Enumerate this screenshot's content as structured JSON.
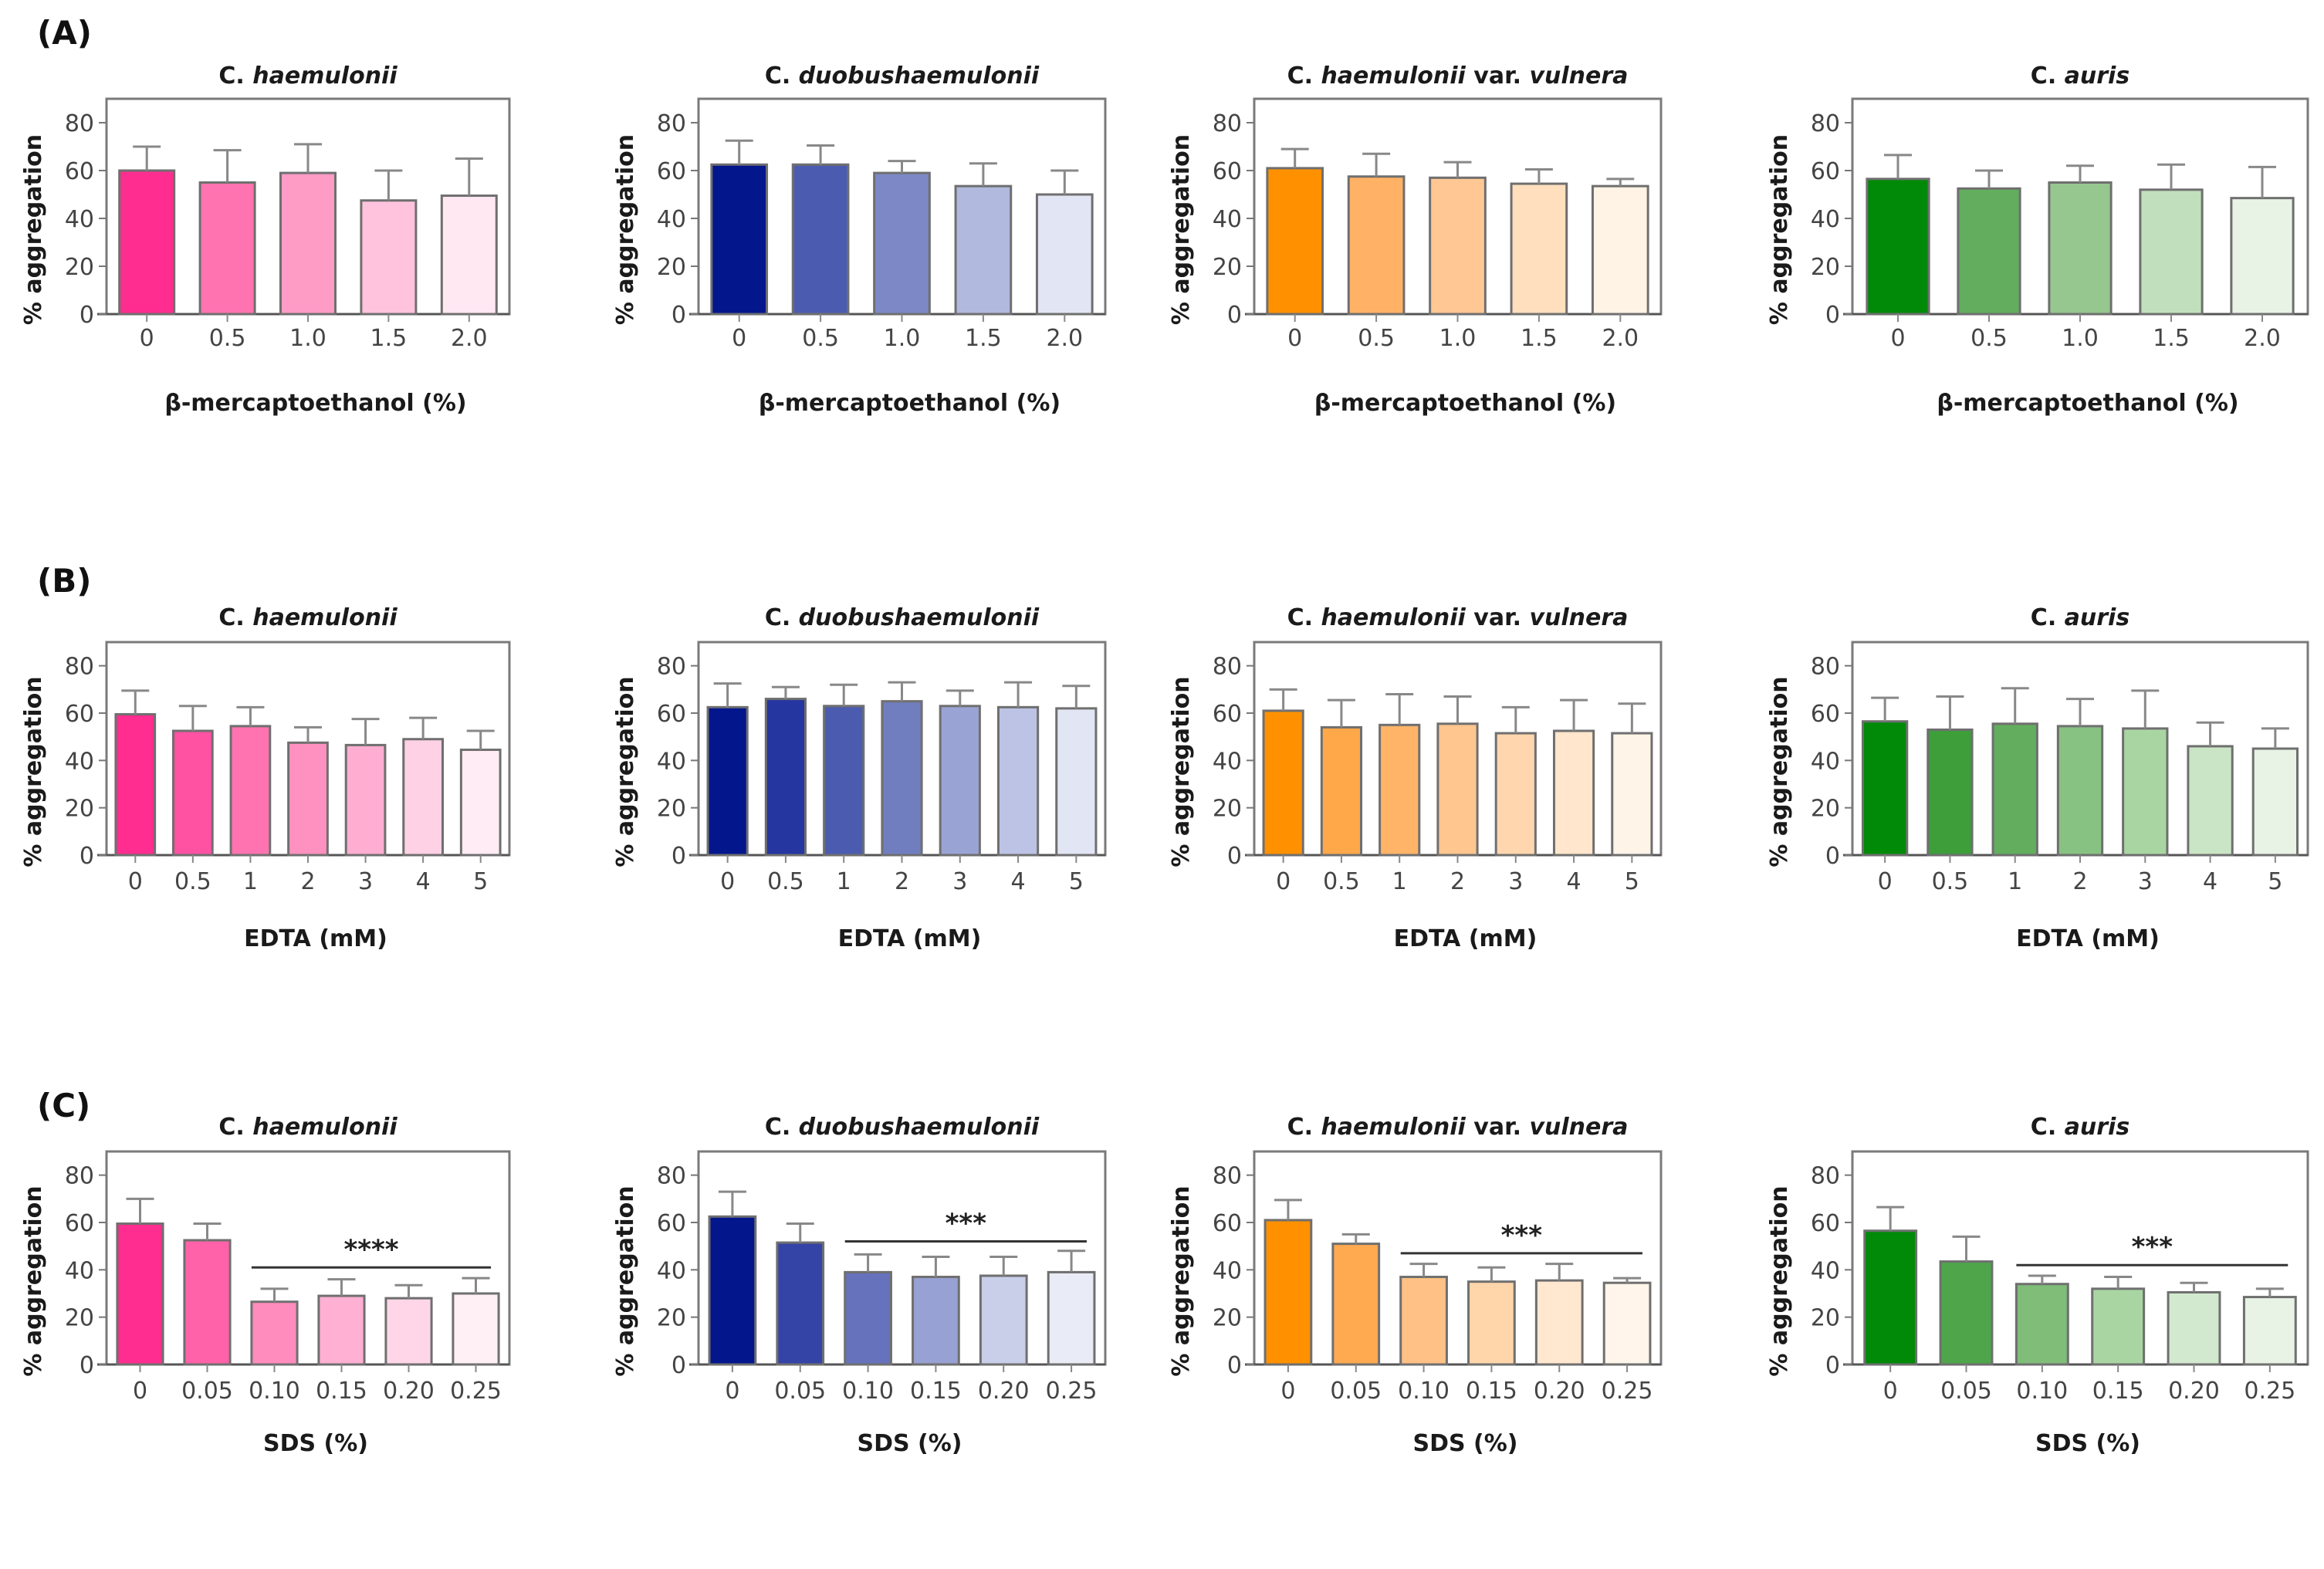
{
  "row_labels": [
    "(A)",
    "(B)",
    "(C)"
  ],
  "chart_data": [
    {
      "type": "bar",
      "row": "A",
      "title_prefix": "C. ",
      "title_italic": "haemulonii",
      "title_suffix": "",
      "xlabel": "β-mercaptoethanol (%)",
      "ylabel": "% aggregation",
      "ylim": [
        0,
        90
      ],
      "yticks": [
        0,
        20,
        40,
        60,
        80
      ],
      "categories": [
        "0",
        "0.5",
        "1.0",
        "1.5",
        "2.0"
      ],
      "values": [
        60,
        55,
        59,
        47.5,
        49.5
      ],
      "errors": [
        10,
        13.5,
        12,
        12.5,
        15.5
      ],
      "colors": [
        "#ff2d8f",
        "#ff74b0",
        "#ff9cc6",
        "#ffc3de",
        "#ffe8f2"
      ],
      "significance": null
    },
    {
      "type": "bar",
      "row": "A",
      "title_prefix": "C. ",
      "title_italic": "duobushaemulonii",
      "title_suffix": "",
      "xlabel": "β-mercaptoethanol (%)",
      "ylabel": "% aggregation",
      "ylim": [
        0,
        90
      ],
      "yticks": [
        0,
        20,
        40,
        60,
        80
      ],
      "categories": [
        "0",
        "0.5",
        "1.0",
        "1.5",
        "2.0"
      ],
      "values": [
        62.5,
        62.5,
        59,
        53.5,
        50
      ],
      "errors": [
        10,
        8,
        5,
        9.5,
        10
      ],
      "colors": [
        "#03168c",
        "#4b5cb0",
        "#7d89c6",
        "#b1b9de",
        "#e2e5f3"
      ],
      "significance": null
    },
    {
      "type": "bar",
      "row": "A",
      "title_prefix": "C. ",
      "title_italic": "haemulonii",
      "title_suffix": " var. vulnera",
      "xlabel": "β-mercaptoethanol (%)",
      "ylabel": "% aggregation",
      "ylim": [
        0,
        90
      ],
      "yticks": [
        0,
        20,
        40,
        60,
        80
      ],
      "categories": [
        "0",
        "0.5",
        "1.0",
        "1.5",
        "2.0"
      ],
      "values": [
        61,
        57.5,
        57,
        54.5,
        53.5
      ],
      "errors": [
        8,
        9.5,
        6.5,
        6,
        3
      ],
      "colors": [
        "#ff9100",
        "#ffb266",
        "#ffc794",
        "#ffdfbd",
        "#fff3e6"
      ],
      "significance": null
    },
    {
      "type": "bar",
      "row": "A",
      "title_prefix": "C. ",
      "title_italic": "auris",
      "title_suffix": "",
      "xlabel": "β-mercaptoethanol (%)",
      "ylabel": "% aggregation",
      "ylim": [
        0,
        90
      ],
      "yticks": [
        0,
        20,
        40,
        60,
        80
      ],
      "categories": [
        "0",
        "0.5",
        "1.0",
        "1.5",
        "2.0"
      ],
      "values": [
        56.5,
        52.5,
        55,
        52,
        48.5
      ],
      "errors": [
        10,
        7.5,
        7,
        10.5,
        13
      ],
      "colors": [
        "#008a08",
        "#62ae5e",
        "#95c78f",
        "#c1dfbd",
        "#e8f3e6"
      ],
      "significance": null
    },
    {
      "type": "bar",
      "row": "B",
      "title_prefix": "C. ",
      "title_italic": "haemulonii",
      "title_suffix": "",
      "xlabel": "EDTA (mM)",
      "ylabel": "% aggregation",
      "ylim": [
        0,
        90
      ],
      "yticks": [
        0,
        20,
        40,
        60,
        80
      ],
      "categories": [
        "0",
        "0.5",
        "1",
        "2",
        "3",
        "4",
        "5"
      ],
      "values": [
        59.5,
        52.5,
        54.5,
        47.5,
        46.5,
        49,
        44.5
      ],
      "errors": [
        10,
        10.5,
        8,
        6.5,
        11,
        9,
        8
      ],
      "colors": [
        "#ff2d8f",
        "#ff52a3",
        "#ff74b0",
        "#ff91c0",
        "#ffaed2",
        "#ffd1e5",
        "#ffecf4"
      ],
      "significance": null
    },
    {
      "type": "bar",
      "row": "B",
      "title_prefix": "C. ",
      "title_italic": "duobushaemulonii",
      "title_suffix": "",
      "xlabel": "EDTA (mM)",
      "ylabel": "% aggregation",
      "ylim": [
        0,
        90
      ],
      "yticks": [
        0,
        20,
        40,
        60,
        80
      ],
      "categories": [
        "0",
        "0.5",
        "1",
        "2",
        "3",
        "4",
        "5"
      ],
      "values": [
        62.5,
        66,
        63,
        65,
        63,
        62.5,
        62
      ],
      "errors": [
        10,
        5,
        9,
        8,
        6.5,
        10.5,
        9.5
      ],
      "colors": [
        "#03168c",
        "#2636a0",
        "#4b5cb0",
        "#707ec0",
        "#9aa4d4",
        "#bcc3e4",
        "#e2e5f3"
      ],
      "significance": null
    },
    {
      "type": "bar",
      "row": "B",
      "title_prefix": "C. ",
      "title_italic": "haemulonii",
      "title_suffix": " var. vulnera",
      "xlabel": "EDTA (mM)",
      "ylabel": "% aggregation",
      "ylim": [
        0,
        90
      ],
      "yticks": [
        0,
        20,
        40,
        60,
        80
      ],
      "categories": [
        "0",
        "0.5",
        "1",
        "2",
        "3",
        "4",
        "5"
      ],
      "values": [
        61,
        54,
        55,
        55.5,
        51.5,
        52.5,
        51.5
      ],
      "errors": [
        9,
        11.5,
        13,
        11.5,
        11,
        13,
        12.5
      ],
      "colors": [
        "#ff9100",
        "#ffa84a",
        "#ffb468",
        "#ffc68f",
        "#ffd6ae",
        "#ffe6cc",
        "#fff4e8"
      ],
      "significance": null
    },
    {
      "type": "bar",
      "row": "B",
      "title_prefix": "C. ",
      "title_italic": "auris",
      "title_suffix": "",
      "xlabel": "EDTA (mM)",
      "ylabel": "% aggregation",
      "ylim": [
        0,
        90
      ],
      "yticks": [
        0,
        20,
        40,
        60,
        80
      ],
      "categories": [
        "0",
        "0.5",
        "1",
        "2",
        "3",
        "4",
        "5"
      ],
      "values": [
        56.5,
        53,
        55.5,
        54.5,
        53.5,
        46,
        45
      ],
      "errors": [
        10,
        14,
        15,
        11.5,
        16,
        10,
        8.5
      ],
      "colors": [
        "#008a08",
        "#3d9e3a",
        "#62ae5e",
        "#88c283",
        "#a9d5a3",
        "#cae5c5",
        "#e8f3e6"
      ],
      "significance": null
    },
    {
      "type": "bar",
      "row": "C",
      "title_prefix": "C. ",
      "title_italic": "haemulonii",
      "title_suffix": "",
      "xlabel": "SDS (%)",
      "ylabel": "% aggregation",
      "ylim": [
        0,
        90
      ],
      "yticks": [
        0,
        20,
        40,
        60,
        80
      ],
      "categories": [
        "0",
        "0.05",
        "0.10",
        "0.15",
        "0.20",
        "0.25"
      ],
      "values": [
        59.5,
        52.5,
        26.5,
        29,
        28,
        30
      ],
      "errors": [
        10.5,
        7,
        5.5,
        7,
        5.5,
        6.5
      ],
      "colors": [
        "#ff2d8f",
        "#ff62a8",
        "#ff8cbd",
        "#ffb0d3",
        "#ffd6e8",
        "#fff0f6"
      ],
      "significance": {
        "label": "****",
        "from_index": 2,
        "to_index": 5,
        "y": 41
      }
    },
    {
      "type": "bar",
      "row": "C",
      "title_prefix": "C. ",
      "title_italic": "duobushaemulonii",
      "title_suffix": "",
      "xlabel": "SDS (%)",
      "ylabel": "% aggregation",
      "ylim": [
        0,
        90
      ],
      "yticks": [
        0,
        20,
        40,
        60,
        80
      ],
      "categories": [
        "0",
        "0.05",
        "0.10",
        "0.15",
        "0.20",
        "0.25"
      ],
      "values": [
        62.5,
        51.5,
        39,
        37,
        37.5,
        39
      ],
      "errors": [
        10.5,
        8,
        7.5,
        8.5,
        8,
        9
      ],
      "colors": [
        "#03168c",
        "#3444a6",
        "#6672bc",
        "#98a1d3",
        "#c9cee9",
        "#e9ebf6"
      ],
      "significance": {
        "label": "***",
        "from_index": 2,
        "to_index": 5,
        "y": 52
      }
    },
    {
      "type": "bar",
      "row": "C",
      "title_prefix": "C. ",
      "title_italic": "haemulonii",
      "title_suffix": " var. vulnera",
      "xlabel": "SDS (%)",
      "ylabel": "% aggregation",
      "ylim": [
        0,
        90
      ],
      "yticks": [
        0,
        20,
        40,
        60,
        80
      ],
      "categories": [
        "0",
        "0.05",
        "0.10",
        "0.15",
        "0.20",
        "0.25"
      ],
      "values": [
        61,
        51,
        37,
        35,
        35.5,
        34.5
      ],
      "errors": [
        8.5,
        4,
        5.5,
        6,
        7,
        2
      ],
      "colors": [
        "#ff9100",
        "#ffaa50",
        "#ffc185",
        "#ffd5aa",
        "#ffe7d0",
        "#fff5ea"
      ],
      "significance": {
        "label": "***",
        "from_index": 2,
        "to_index": 5,
        "y": 47
      }
    },
    {
      "type": "bar",
      "row": "C",
      "title_prefix": "C. ",
      "title_italic": "auris",
      "title_suffix": "",
      "xlabel": "SDS (%)",
      "ylabel": "% aggregation",
      "ylim": [
        0,
        90
      ],
      "yticks": [
        0,
        20,
        40,
        60,
        80
      ],
      "categories": [
        "0",
        "0.05",
        "0.10",
        "0.15",
        "0.20",
        "0.25"
      ],
      "values": [
        56.5,
        43.5,
        34,
        32,
        30.5,
        28.5
      ],
      "errors": [
        10,
        10.5,
        3.5,
        5,
        4,
        3.5
      ],
      "colors": [
        "#008a08",
        "#4fa64a",
        "#7fbd79",
        "#a9d5a3",
        "#d3e9cf",
        "#e8f3e6"
      ],
      "significance": {
        "label": "***",
        "from_index": 2,
        "to_index": 5,
        "y": 42
      }
    }
  ]
}
